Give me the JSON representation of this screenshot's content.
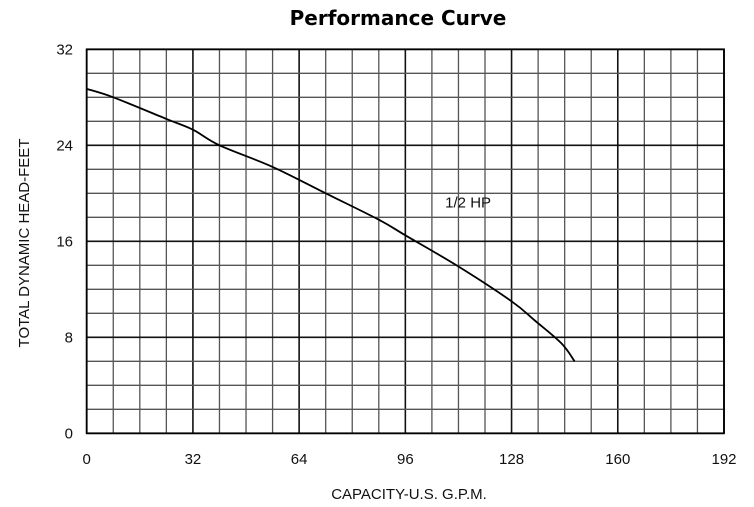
{
  "chart_data": {
    "type": "line",
    "title": "Performance Curve",
    "xlabel": "CAPACITY-U.S. G.P.M.",
    "ylabel": "TOTAL DYNAMIC HEAD-FEET",
    "xlim": [
      0,
      192
    ],
    "ylim": [
      0,
      32
    ],
    "xticks": [
      0,
      32,
      64,
      96,
      128,
      160,
      192
    ],
    "yticks": [
      0,
      8,
      16,
      24,
      32
    ],
    "x_minor_step": 8,
    "y_minor_step": 2,
    "grid": true,
    "legend": "none",
    "series": [
      {
        "name": "1/2 HP",
        "color": "#000000",
        "points": [
          [
            0,
            28.7
          ],
          [
            8,
            28.0
          ],
          [
            24,
            26.2
          ],
          [
            32,
            25.3
          ],
          [
            40,
            24.0
          ],
          [
            56,
            22.2
          ],
          [
            72,
            20.0
          ],
          [
            88,
            17.8
          ],
          [
            96,
            16.5
          ],
          [
            112,
            13.9
          ],
          [
            128,
            11.0
          ],
          [
            135,
            9.4
          ],
          [
            143,
            7.5
          ],
          [
            147,
            6.0
          ]
        ]
      }
    ],
    "annotations": [
      {
        "text": "1/2 HP",
        "x": 108,
        "y": 18.8
      }
    ]
  }
}
